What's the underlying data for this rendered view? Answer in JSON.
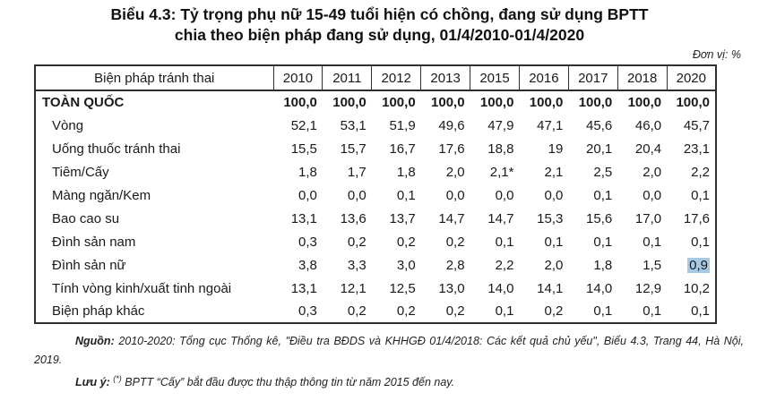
{
  "title": {
    "line1": "Biểu 4.3: Tỷ trọng phụ nữ 15-49 tuổi hiện có chồng, đang sử dụng BPTT",
    "line2": "chia theo biện pháp đang sử dụng, 01/4/2010-01/4/2020"
  },
  "unit_label": "Đơn vị: %",
  "colors": {
    "highlight": "#a8c9e4",
    "border": "#2f2f2f"
  },
  "table": {
    "columns": [
      "Biện pháp tránh thai",
      "2010",
      "2011",
      "2012",
      "2013",
      "2015",
      "2016",
      "2017",
      "2018",
      "2020"
    ],
    "rows": [
      {
        "label": "TOÀN QUỐC",
        "total": true,
        "highlight": null,
        "values": [
          "100,0",
          "100,0",
          "100,0",
          "100,0",
          "100,0",
          "100,0",
          "100,0",
          "100,0",
          "100,0"
        ]
      },
      {
        "label": "Vòng",
        "total": false,
        "highlight": null,
        "values": [
          "52,1",
          "53,1",
          "51,9",
          "49,6",
          "47,9",
          "47,1",
          "45,6",
          "46,0",
          "45,7"
        ]
      },
      {
        "label": "Uống thuốc tránh thai",
        "total": false,
        "highlight": null,
        "values": [
          "15,5",
          "15,7",
          "16,7",
          "17,6",
          "18,8",
          "19",
          "20,1",
          "20,4",
          "23,1"
        ]
      },
      {
        "label": "Tiêm/Cấy",
        "total": false,
        "highlight": null,
        "values": [
          "1,8",
          "1,7",
          "1,8",
          "2,0",
          "2,1*",
          "2,1",
          "2,5",
          "2,0",
          "2,2"
        ]
      },
      {
        "label": "Màng ngăn/Kem",
        "total": false,
        "highlight": null,
        "values": [
          "0,0",
          "0,0",
          "0,1",
          "0,0",
          "0,0",
          "0,0",
          "0,1",
          "0,0",
          "0,1"
        ]
      },
      {
        "label": "Bao cao su",
        "total": false,
        "highlight": null,
        "values": [
          "13,1",
          "13,6",
          "13,7",
          "14,7",
          "14,7",
          "15,3",
          "15,6",
          "17,0",
          "17,6"
        ]
      },
      {
        "label": "Đình sản nam",
        "total": false,
        "highlight": null,
        "values": [
          "0,3",
          "0,2",
          "0,2",
          "0,2",
          "0,1",
          "0,1",
          "0,1",
          "0,1",
          "0,1"
        ]
      },
      {
        "label": "Đình sản nữ",
        "total": false,
        "highlight": 8,
        "values": [
          "3,8",
          "3,3",
          "3,0",
          "2,8",
          "2,2",
          "2,0",
          "1,8",
          "1,5",
          "0,9"
        ]
      },
      {
        "label": "Tính vòng kinh/xuất tinh ngoài",
        "total": false,
        "highlight": null,
        "values": [
          "13,1",
          "12,1",
          "12,5",
          "13,0",
          "14,0",
          "14,1",
          "14,0",
          "12,9",
          "10,2"
        ]
      },
      {
        "label": "Biện pháp khác",
        "total": false,
        "highlight": null,
        "values": [
          "0,3",
          "0,2",
          "0,2",
          "0,2",
          "0,1",
          "0,2",
          "0,1",
          "0,1",
          "0,1"
        ]
      }
    ]
  },
  "footer": {
    "source_label": "Nguồn:",
    "source_text": "2010-2020: Tổng cục Thống kê, \"Điều tra BĐDS và KHHGĐ 01/4/2018: Các kết quả chủ yếu\", Biểu 4.3, Trang 44, Hà Nội, 2019.",
    "note_label": "Lưu ý:",
    "note_sup": "(*)",
    "note_text": "BPTT “Cấy” bắt đầu được thu thập thông tin từ năm 2015 đến nay."
  }
}
